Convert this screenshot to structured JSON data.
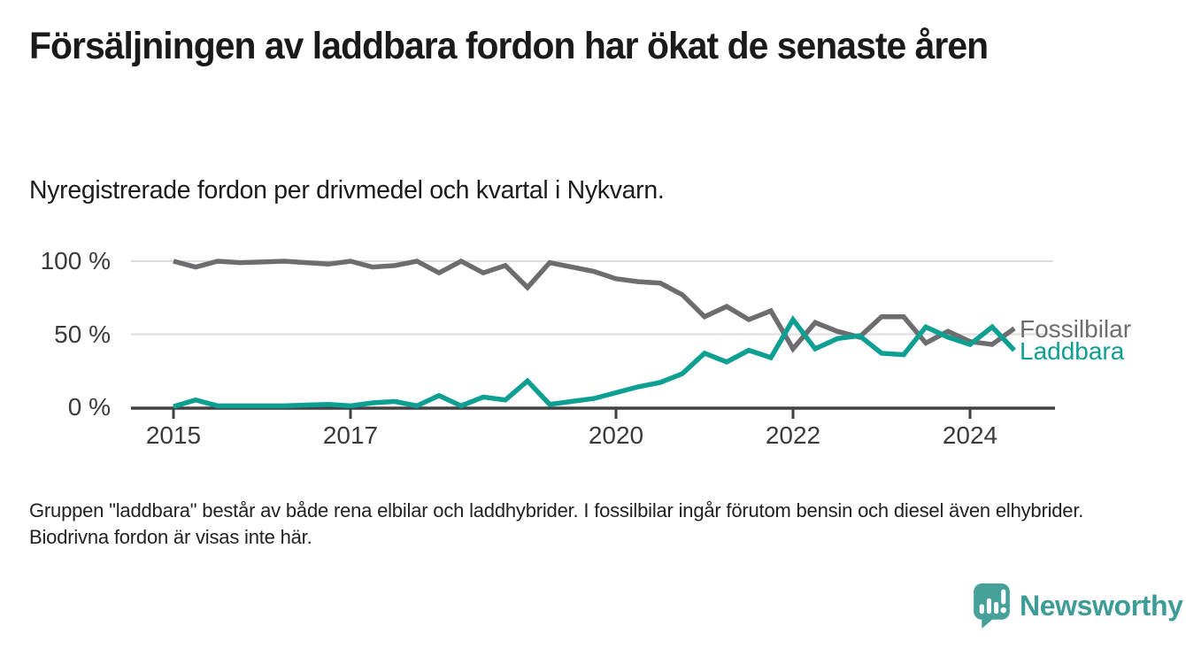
{
  "header": {
    "title": "Försäljningen av laddbara fordon har ökat de senaste åren",
    "subtitle": "Nyregistrerade fordon per drivmedel och kvartal i Nykvarn."
  },
  "chart_data": {
    "type": "line",
    "title": "Försäljningen av laddbara fordon har ökat de senaste åren",
    "subtitle": "Nyregistrerade fordon per drivmedel och kvartal i Nykvarn.",
    "unit": "%",
    "ylim": [
      0,
      100
    ],
    "grid": "horizontal",
    "y_ticks": [
      {
        "label": "100 %",
        "value": 100
      },
      {
        "label": "50 %",
        "value": 50
      },
      {
        "label": "0 %",
        "value": 0
      }
    ],
    "x_ticks": [
      {
        "label": "2015",
        "year": 2015
      },
      {
        "label": "2017",
        "year": 2017
      },
      {
        "label": "2020",
        "year": 2020
      },
      {
        "label": "2022",
        "year": 2022
      },
      {
        "label": "2024",
        "year": 2024
      }
    ],
    "x": [
      "2015 Q1",
      "2015 Q2",
      "2015 Q3",
      "2015 Q4",
      "2016 Q1",
      "2016 Q2",
      "2016 Q3",
      "2016 Q4",
      "2017 Q1",
      "2017 Q2",
      "2017 Q3",
      "2017 Q4",
      "2018 Q1",
      "2018 Q2",
      "2018 Q3",
      "2018 Q4",
      "2019 Q1",
      "2019 Q2",
      "2019 Q3",
      "2019 Q4",
      "2020 Q1",
      "2020 Q2",
      "2020 Q3",
      "2020 Q4",
      "2021 Q1",
      "2021 Q2",
      "2021 Q3",
      "2021 Q4",
      "2022 Q1",
      "2022 Q2",
      "2022 Q3",
      "2022 Q4",
      "2023 Q1",
      "2023 Q2",
      "2023 Q3",
      "2023 Q4",
      "2024 Q1",
      "2024 Q2",
      "2024 Q3"
    ],
    "series": [
      {
        "name": "Fossilbilar",
        "color": "#6d6d70",
        "values": [
          100,
          96,
          100,
          99,
          99.5,
          100,
          99,
          98,
          100,
          96,
          97,
          100,
          92,
          100,
          92,
          97,
          82,
          99,
          96,
          93,
          88,
          86,
          85,
          77,
          62,
          69,
          60,
          66,
          40,
          58,
          52,
          48,
          62,
          62,
          44,
          52,
          45,
          43,
          54
        ]
      },
      {
        "name": "Laddbara",
        "color": "#0da092",
        "values": [
          0.5,
          5,
          1,
          1,
          1,
          1,
          1.5,
          2,
          1,
          3,
          4,
          1,
          8,
          1,
          7,
          5,
          18,
          2,
          4,
          6,
          10,
          14,
          17,
          23,
          37,
          31,
          39,
          34,
          60,
          40,
          47,
          49,
          37,
          36,
          55,
          48,
          43,
          55,
          39
        ]
      }
    ],
    "legend_position": "right-of-line-ends"
  },
  "footer": {
    "note": "Gruppen \"laddbara\" består av både rena elbilar och laddhybrider. I fossilbilar ingår förutom bensin och diesel även elhybrider. Biodrivna fordon är visas inte här."
  },
  "brand": {
    "name": "Newsworthy",
    "logo_icon": "speech-bubble-bar-chart-exclamation",
    "color": "#3d9c96",
    "icon_color": "#45a19a"
  },
  "colors": {
    "background": "#ffffff",
    "axis": "#414042",
    "gridline": "#dcdcdc",
    "tick_text": "#3a3a3a",
    "title_text": "#1a1a1a"
  }
}
